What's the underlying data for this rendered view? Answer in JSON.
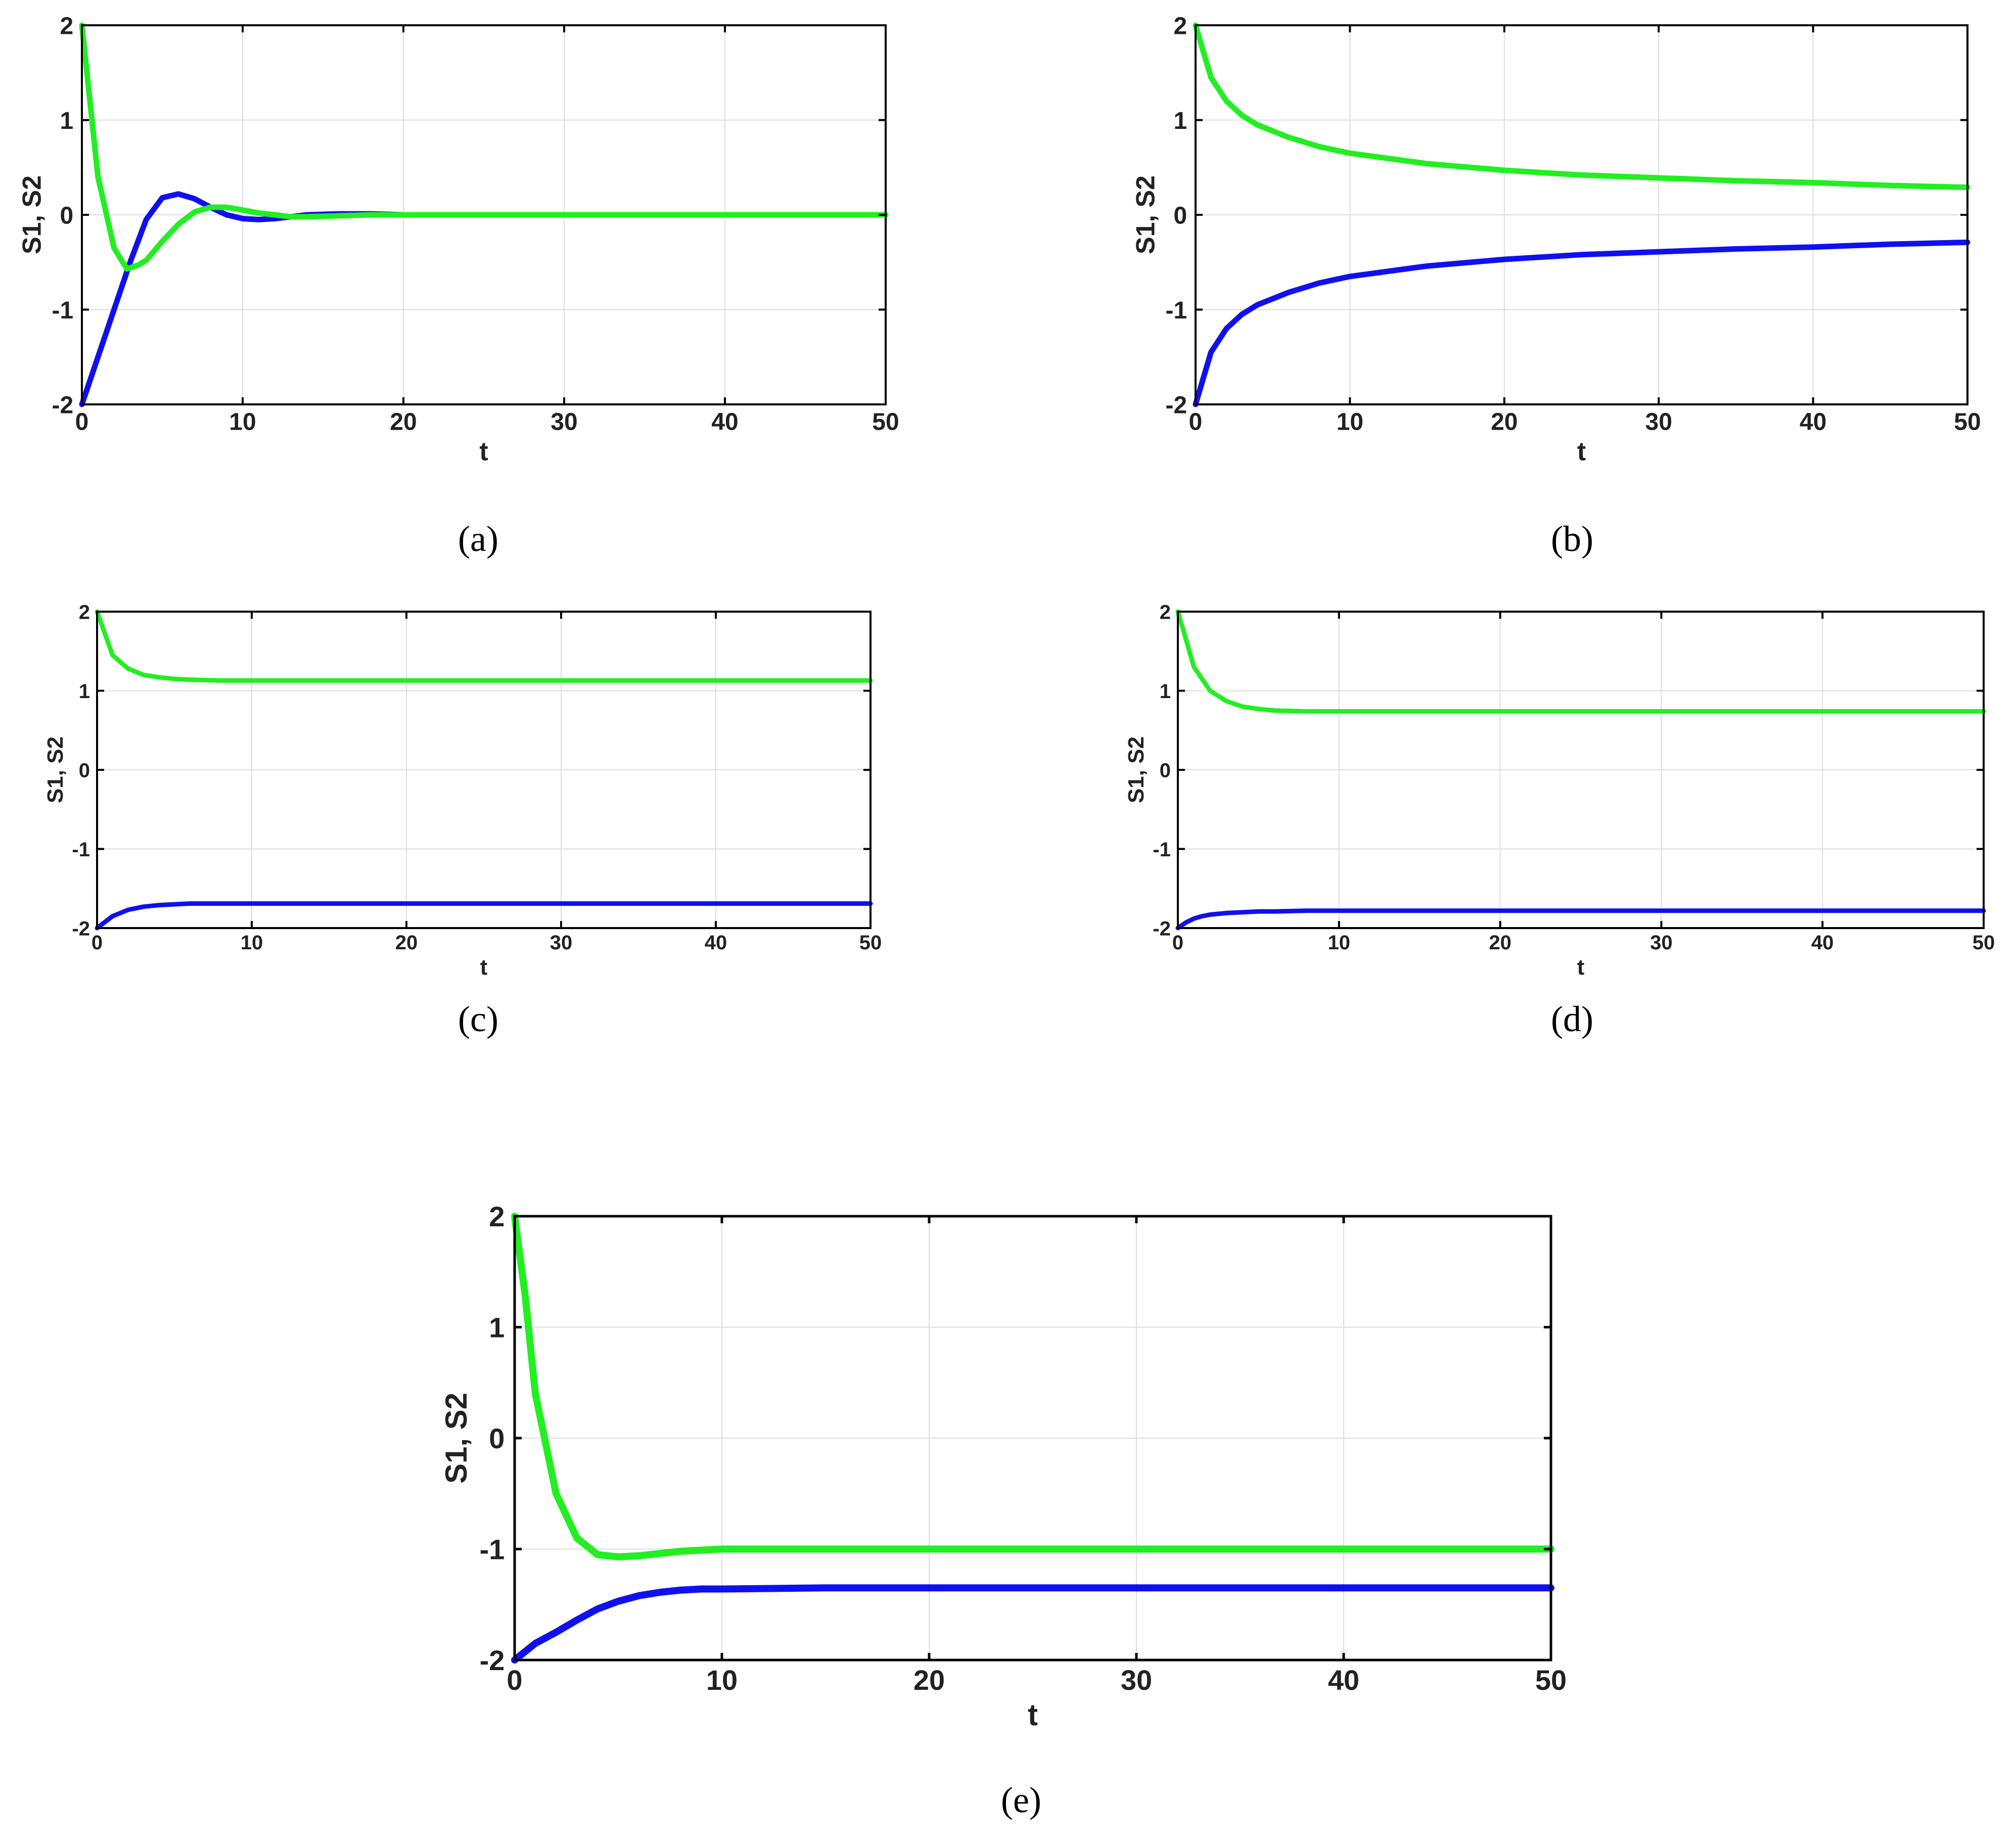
{
  "colors": {
    "S1": "#1010ee",
    "S2": "#22ee22",
    "grid": "#dddddd",
    "axis": "#000000"
  },
  "chart_data": [
    {
      "panel": "a",
      "caption": "(a)",
      "type": "line",
      "title": "",
      "xlabel": "t",
      "ylabel": "S1, S2",
      "xlim": [
        0,
        50
      ],
      "ylim": [
        -2,
        2
      ],
      "xticks": [
        0,
        10,
        20,
        30,
        40,
        50
      ],
      "yticks": [
        -2,
        -1,
        0,
        1,
        2
      ],
      "grid": true,
      "series": [
        {
          "color": "#1010ee",
          "x": [
            0,
            1,
            2,
            3,
            4,
            5,
            6,
            7,
            8,
            9,
            10,
            11,
            12,
            13,
            14,
            16,
            18,
            20,
            25,
            30,
            40,
            50
          ],
          "y": [
            -2,
            -1.5,
            -1.0,
            -0.5,
            -0.05,
            0.18,
            0.22,
            0.17,
            0.08,
            0.0,
            -0.04,
            -0.05,
            -0.04,
            -0.02,
            0.0,
            0.01,
            0.01,
            0.0,
            0,
            0,
            0,
            0
          ]
        },
        {
          "color": "#22ee22",
          "x": [
            0,
            1,
            2,
            2.8,
            3.5,
            4,
            5,
            6,
            7,
            8,
            9,
            10,
            11,
            12,
            13,
            14,
            16,
            18,
            20,
            25,
            30,
            40,
            50
          ],
          "y": [
            2,
            0.4,
            -0.35,
            -0.57,
            -0.53,
            -0.48,
            -0.28,
            -0.1,
            0.03,
            0.08,
            0.08,
            0.05,
            0.02,
            0.0,
            -0.02,
            -0.02,
            -0.01,
            0.0,
            0.0,
            0,
            0,
            0,
            0
          ]
        }
      ]
    },
    {
      "panel": "b",
      "caption": "(b)",
      "type": "line",
      "title": "",
      "xlabel": "t",
      "ylabel": "S1, S2",
      "xlim": [
        0,
        50
      ],
      "ylim": [
        -2,
        2
      ],
      "xticks": [
        0,
        10,
        20,
        30,
        40,
        50
      ],
      "yticks": [
        -2,
        -1,
        0,
        1,
        2
      ],
      "grid": true,
      "series": [
        {
          "color": "#1010ee",
          "x": [
            0,
            1,
            2,
            3,
            4,
            6,
            8,
            10,
            15,
            20,
            25,
            30,
            35,
            40,
            45,
            50
          ],
          "y": [
            -2,
            -1.45,
            -1.2,
            -1.05,
            -0.95,
            -0.82,
            -0.72,
            -0.65,
            -0.54,
            -0.47,
            -0.42,
            -0.39,
            -0.36,
            -0.34,
            -0.31,
            -0.29
          ]
        },
        {
          "color": "#22ee22",
          "x": [
            0,
            1,
            2,
            3,
            4,
            6,
            8,
            10,
            15,
            20,
            25,
            30,
            35,
            40,
            45,
            50
          ],
          "y": [
            2,
            1.45,
            1.2,
            1.05,
            0.95,
            0.82,
            0.72,
            0.65,
            0.54,
            0.47,
            0.42,
            0.39,
            0.36,
            0.34,
            0.31,
            0.29
          ]
        }
      ]
    },
    {
      "panel": "c",
      "caption": "(c)",
      "type": "line",
      "title": "",
      "xlabel": "t",
      "ylabel": "S1, S2",
      "xlim": [
        0,
        50
      ],
      "ylim": [
        -2,
        2
      ],
      "xticks": [
        0,
        10,
        20,
        30,
        40,
        50
      ],
      "yticks": [
        -2,
        -1,
        0,
        1,
        2
      ],
      "grid": true,
      "series": [
        {
          "color": "#1010ee",
          "x": [
            0,
            1,
            2,
            3,
            4,
            5,
            6,
            8,
            10,
            20,
            30,
            40,
            50
          ],
          "y": [
            -2,
            -1.85,
            -1.77,
            -1.73,
            -1.71,
            -1.7,
            -1.69,
            -1.69,
            -1.69,
            -1.69,
            -1.69,
            -1.69,
            -1.69
          ]
        },
        {
          "color": "#22ee22",
          "x": [
            0,
            1,
            2,
            3,
            4,
            5,
            6,
            8,
            10,
            20,
            30,
            40,
            50
          ],
          "y": [
            2,
            1.45,
            1.28,
            1.2,
            1.17,
            1.15,
            1.14,
            1.13,
            1.13,
            1.13,
            1.13,
            1.13,
            1.13
          ]
        }
      ]
    },
    {
      "panel": "d",
      "caption": "(d)",
      "type": "line",
      "title": "",
      "xlabel": "t",
      "ylabel": "S1, S2",
      "xlim": [
        0,
        50
      ],
      "ylim": [
        -2,
        2
      ],
      "xticks": [
        0,
        10,
        20,
        30,
        40,
        50
      ],
      "yticks": [
        -2,
        -1,
        0,
        1,
        2
      ],
      "grid": true,
      "series": [
        {
          "color": "#1010ee",
          "x": [
            0,
            0.5,
            1,
            1.5,
            2,
            3,
            4,
            5,
            6,
            8,
            10,
            20,
            30,
            40,
            50
          ],
          "y": [
            -2,
            -1.93,
            -1.88,
            -1.85,
            -1.83,
            -1.81,
            -1.8,
            -1.79,
            -1.79,
            -1.78,
            -1.78,
            -1.78,
            -1.78,
            -1.78,
            -1.78
          ]
        },
        {
          "color": "#22ee22",
          "x": [
            0,
            1,
            2,
            3,
            4,
            5,
            6,
            8,
            10,
            20,
            30,
            40,
            50
          ],
          "y": [
            2,
            1.3,
            1.0,
            0.87,
            0.8,
            0.77,
            0.75,
            0.74,
            0.74,
            0.74,
            0.74,
            0.74,
            0.74
          ]
        }
      ]
    },
    {
      "panel": "e",
      "caption": "(e)",
      "type": "line",
      "title": "",
      "xlabel": "t",
      "ylabel": "S1, S2",
      "xlim": [
        0,
        50
      ],
      "ylim": [
        -2,
        2
      ],
      "xticks": [
        0,
        10,
        20,
        30,
        40,
        50
      ],
      "yticks": [
        -2,
        -1,
        0,
        1,
        2
      ],
      "grid": true,
      "series": [
        {
          "color": "#1010ee",
          "x": [
            0,
            1,
            2,
            3,
            4,
            5,
            6,
            7,
            8,
            9,
            10,
            15,
            20,
            30,
            40,
            50
          ],
          "y": [
            -2,
            -1.85,
            -1.75,
            -1.64,
            -1.54,
            -1.47,
            -1.42,
            -1.39,
            -1.37,
            -1.36,
            -1.36,
            -1.35,
            -1.35,
            -1.35,
            -1.35,
            -1.35
          ]
        },
        {
          "color": "#22ee22",
          "x": [
            0,
            0.5,
            1,
            2,
            3,
            4,
            5,
            6,
            7,
            8,
            10,
            15,
            20,
            30,
            40,
            50
          ],
          "y": [
            2,
            1.3,
            0.4,
            -0.5,
            -0.9,
            -1.05,
            -1.07,
            -1.06,
            -1.04,
            -1.02,
            -1.0,
            -1.0,
            -1.0,
            -1.0,
            -1.0,
            -1.0
          ]
        }
      ]
    }
  ]
}
